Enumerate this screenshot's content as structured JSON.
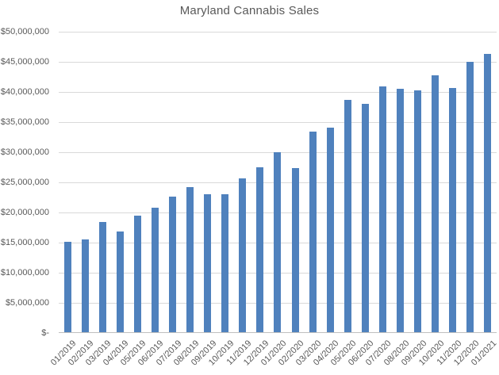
{
  "chart_data": {
    "type": "bar",
    "title": "Maryland Cannabis Sales",
    "xlabel": "",
    "ylabel": "",
    "categories": [
      "01/2019",
      "02/2019",
      "03/2019",
      "04/2019",
      "05/2019",
      "06/2019",
      "07/2019",
      "08/2019",
      "09/2019",
      "10/2019",
      "11/2019",
      "12/2019",
      "01/2020",
      "02/2020",
      "03/2020",
      "04/2020",
      "05/2020",
      "06/2020",
      "07/2020",
      "08/2020",
      "09/2020",
      "10/2020",
      "11/2020",
      "12/2020",
      "01/2021"
    ],
    "values": [
      15000000,
      15500000,
      18300000,
      16800000,
      19400000,
      20700000,
      22500000,
      24100000,
      23000000,
      23000000,
      25600000,
      27500000,
      29900000,
      27300000,
      33400000,
      34000000,
      38600000,
      38000000,
      40900000,
      40500000,
      40300000,
      42800000,
      40700000,
      45000000,
      46300000
    ],
    "ylim": [
      0,
      50000000
    ],
    "ytick_interval": 5000000,
    "ytick_values": [
      0,
      5000000,
      10000000,
      15000000,
      20000000,
      25000000,
      30000000,
      35000000,
      40000000,
      45000000,
      50000000
    ],
    "ytick_labels": [
      "$-",
      "$5,000,000",
      "$10,000,000",
      "$15,000,000",
      "$20,000,000",
      "$25,000,000",
      "$30,000,000",
      "$35,000,000",
      "$40,000,000",
      "$45,000,000",
      "$50,000,000"
    ],
    "grid": true,
    "legend": false,
    "colors": {
      "bar": "#4f81bd",
      "gridline": "#d9d9d9",
      "axis_line": "#bfbfbf",
      "text": "#595959",
      "background": "#ffffff"
    }
  }
}
